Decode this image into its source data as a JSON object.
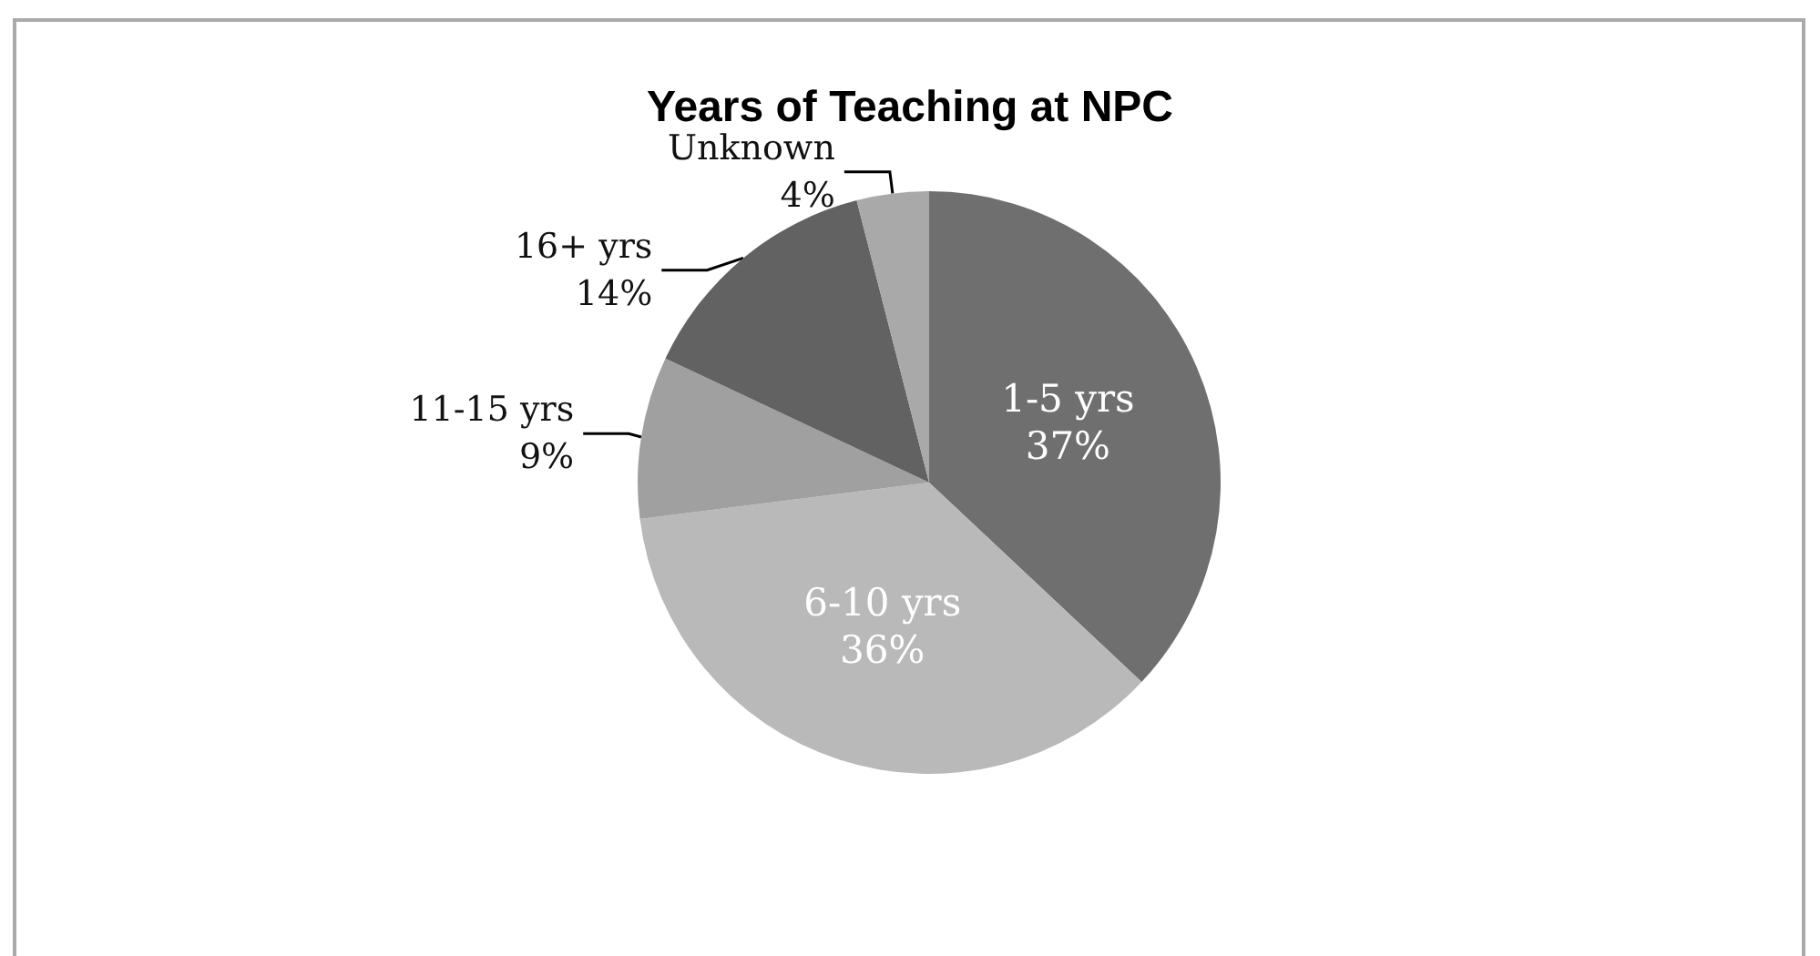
{
  "chart_data": {
    "type": "pie",
    "title": "Years of Teaching at NPC",
    "categories": [
      "1-5 yrs",
      "6-10 yrs",
      "11-15 yrs",
      "16+ yrs",
      "Unknown"
    ],
    "values": [
      37,
      36,
      9,
      14,
      4
    ],
    "colors": [
      "#6f6f6f",
      "#b9b9b9",
      "#a0a0a0",
      "#626262",
      "#a9a9a9"
    ],
    "value_labels": [
      "37%",
      "36%",
      "9%",
      "14%",
      "4%"
    ],
    "legend": false
  }
}
